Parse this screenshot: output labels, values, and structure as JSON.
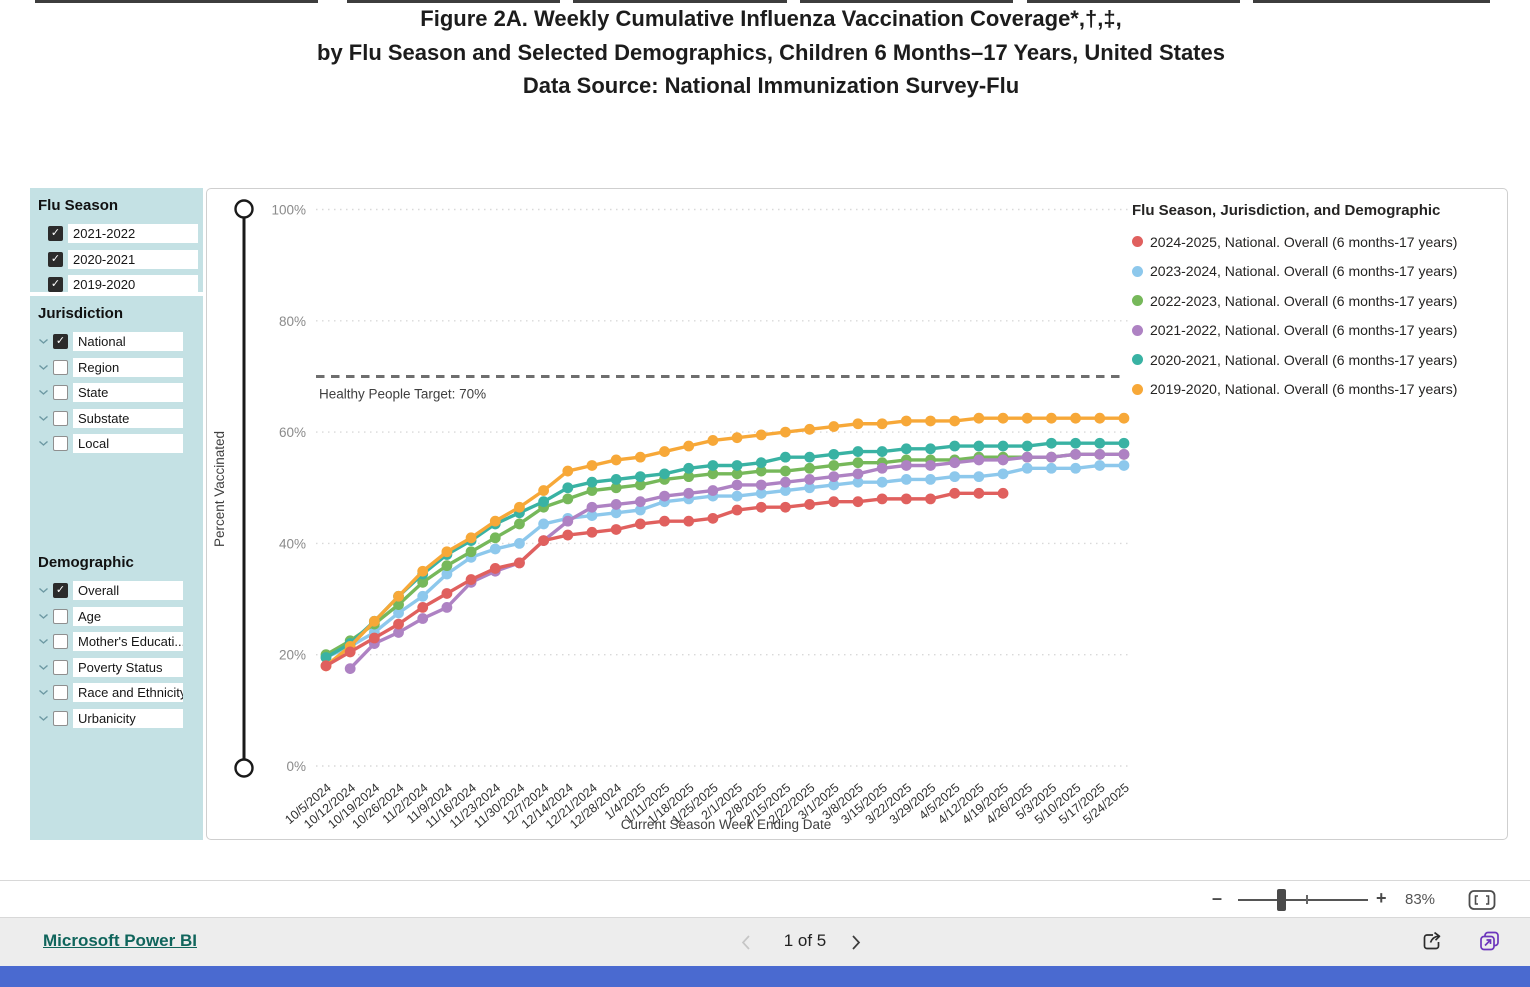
{
  "title": {
    "line1": "Figure 2A. Weekly Cumulative Influenza Vaccination Coverage*,†,‡,",
    "line2": "by Flu Season and Selected Demographics, Children 6 Months–17 Years, United States",
    "line3": "Data Source: National Immunization Survey-Flu"
  },
  "sidebar": {
    "flu_season": {
      "header": "Flu Season",
      "items": [
        {
          "label": "2021-2022",
          "checked": true
        },
        {
          "label": "2020-2021",
          "checked": true
        },
        {
          "label": "2019-2020",
          "checked": true
        }
      ]
    },
    "jurisdiction": {
      "header": "Jurisdiction",
      "items": [
        {
          "label": "National",
          "checked": true
        },
        {
          "label": "Region",
          "checked": false
        },
        {
          "label": "State",
          "checked": false
        },
        {
          "label": "Substate",
          "checked": false
        },
        {
          "label": "Local",
          "checked": false
        }
      ]
    },
    "demographic": {
      "header": "Demographic",
      "items": [
        {
          "label": "Overall",
          "checked": true
        },
        {
          "label": "Age",
          "checked": false
        },
        {
          "label": "Mother's Educati...",
          "checked": false
        },
        {
          "label": "Poverty Status",
          "checked": false
        },
        {
          "label": "Race and Ethnicity",
          "checked": false
        },
        {
          "label": "Urbanicity",
          "checked": false
        }
      ]
    }
  },
  "chart": {
    "legend_title": "Flu Season, Jurisdiction, and Demographic",
    "y_axis_label": "Percent Vaccinated",
    "x_axis_label": "Current Season Week Ending Date",
    "y_ticks": [
      {
        "label": "0%",
        "value": 0
      },
      {
        "label": "20%",
        "value": 20
      },
      {
        "label": "40%",
        "value": 40
      },
      {
        "label": "60%",
        "value": 60
      },
      {
        "label": "80%",
        "value": 80
      },
      {
        "label": "100%",
        "value": 100
      }
    ],
    "target_label": "Healthy People Target: 70%"
  },
  "chart_data": {
    "type": "line",
    "title": "Weekly Cumulative Influenza Vaccination Coverage, Children 6 Months-17 Years",
    "xlabel": "Current Season Week Ending Date",
    "ylabel": "Percent Vaccinated",
    "ylim": [
      0,
      100
    ],
    "grid": true,
    "legend_position": "right",
    "annotations": [
      {
        "type": "hline",
        "y": 70,
        "style": "dashed",
        "label": "Healthy People Target: 70%"
      }
    ],
    "x": [
      "10/5/2024",
      "10/12/2024",
      "10/19/2024",
      "10/26/2024",
      "11/2/2024",
      "11/9/2024",
      "11/16/2024",
      "11/23/2024",
      "11/30/2024",
      "12/7/2024",
      "12/14/2024",
      "12/21/2024",
      "12/28/2024",
      "1/4/2025",
      "1/11/2025",
      "1/18/2025",
      "1/25/2025",
      "2/1/2025",
      "2/8/2025",
      "2/15/2025",
      "2/22/2025",
      "3/1/2025",
      "3/8/2025",
      "3/15/2025",
      "3/22/2025",
      "3/29/2025",
      "4/5/2025",
      "4/12/2025",
      "4/19/2025",
      "4/26/2025",
      "5/3/2025",
      "5/10/2025",
      "5/17/2025",
      "5/24/2025"
    ],
    "series": [
      {
        "name": "2024-2025, National. Overall (6 months-17 years)",
        "color": "#e0605e",
        "start_index": 0,
        "values": [
          18,
          20.5,
          23,
          25.5,
          28.5,
          31,
          33.5,
          35.5,
          36.5,
          40.5,
          41.5,
          42,
          42.5,
          43.5,
          44,
          44,
          44.5,
          46,
          46.5,
          46.5,
          47,
          47.5,
          47.5,
          48,
          48,
          48,
          49,
          49,
          49
        ]
      },
      {
        "name": "2023-2024, National. Overall (6 months-17 years)",
        "color": "#8dc8ec",
        "start_index": 0,
        "values": [
          19.5,
          21.5,
          24,
          27.5,
          30.5,
          34.5,
          37.5,
          39,
          40,
          43.5,
          44.5,
          45,
          45.5,
          46,
          47.5,
          48,
          48.5,
          48.5,
          49,
          49.5,
          50,
          50.5,
          51,
          51,
          51.5,
          51.5,
          52,
          52,
          52.5,
          53.5,
          53.5,
          53.5,
          54,
          54
        ]
      },
      {
        "name": "2022-2023, National. Overall (6 months-17 years)",
        "color": "#76b85a",
        "start_index": 0,
        "values": [
          20,
          22.5,
          25.5,
          29,
          33,
          36,
          38.5,
          41,
          43.5,
          46.5,
          48,
          49.5,
          50,
          50.5,
          51.5,
          52,
          52.5,
          52.5,
          53,
          53,
          53.5,
          54,
          54.5,
          54.5,
          55,
          55,
          55,
          55.5,
          55.5,
          55.5,
          55.5,
          56,
          56,
          56
        ]
      },
      {
        "name": "2021-2022, National. Overall (6 months-17 years)",
        "color": "#ae82c3",
        "start_index": 1,
        "values": [
          17.5,
          22,
          24,
          26.5,
          28.5,
          33,
          35,
          36.5,
          40.5,
          44,
          46.5,
          47,
          47.5,
          48.5,
          49,
          49.5,
          50.5,
          50.5,
          51,
          51.5,
          52,
          52.5,
          53.5,
          54,
          54,
          54.5,
          55,
          55,
          55.5,
          55.5,
          56,
          56,
          56
        ]
      },
      {
        "name": "2020-2021, National. Overall (6 months-17 years)",
        "color": "#39b2a3",
        "start_index": 0,
        "values": [
          19.5,
          22,
          26,
          30.5,
          34.5,
          38,
          40.5,
          43.5,
          45.5,
          47.5,
          50,
          51,
          51.5,
          52,
          52.5,
          53.5,
          54,
          54,
          54.5,
          55.5,
          55.5,
          56,
          56.5,
          56.5,
          57,
          57,
          57.5,
          57.5,
          57.5,
          57.5,
          58,
          58,
          58,
          58
        ]
      },
      {
        "name": "2019-2020, National. Overall (6 months-17 years)",
        "color": "#f7a838",
        "start_index": 0,
        "values": [
          18,
          21.5,
          26,
          30.5,
          35,
          38.5,
          41,
          44,
          46.5,
          49.5,
          53,
          54,
          55,
          55.5,
          56.5,
          57.5,
          58.5,
          59,
          59.5,
          60,
          60.5,
          61,
          61.5,
          61.5,
          62,
          62,
          62,
          62.5,
          62.5,
          62.5,
          62.5,
          62.5,
          62.5,
          62.5
        ]
      }
    ]
  },
  "zoom_bar": {
    "minus": "–",
    "plus": "+",
    "zoom_level": "83%"
  },
  "footer": {
    "brand": "Microsoft Power BI",
    "page_indicator": "1 of 5"
  }
}
